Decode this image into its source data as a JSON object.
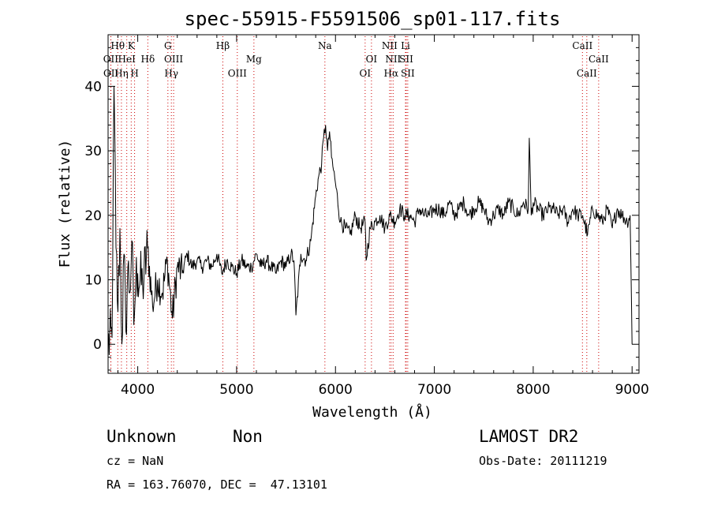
{
  "chart_data": {
    "type": "line",
    "title": "spec-55915-F5591506_sp01-117.fits",
    "xlabel": "Wavelength (Å)",
    "ylabel": "Flux (relative)",
    "xlim": [
      3700,
      9070
    ],
    "ylim": [
      -4.5,
      48
    ],
    "x_ticks": [
      4000,
      5000,
      6000,
      7000,
      8000,
      9000
    ],
    "y_ticks": [
      0,
      10,
      20,
      30,
      40
    ],
    "grid": false,
    "series": [
      {
        "color": "#000000",
        "x": [
          3700,
          3740,
          3760,
          3780,
          3800,
          3820,
          3840,
          3860,
          3880,
          3900,
          3920,
          3940,
          3960,
          3980,
          4000,
          4050,
          4100,
          4150,
          4200,
          4250,
          4300,
          4350,
          4400,
          4450,
          4500,
          4550,
          4600,
          4650,
          4700,
          4750,
          4800,
          4850,
          4900,
          4950,
          5000,
          5050,
          5100,
          5150,
          5200,
          5250,
          5300,
          5350,
          5400,
          5450,
          5500,
          5550,
          5580,
          5600,
          5650,
          5700,
          5750,
          5800,
          5830,
          5860,
          5880,
          5900,
          5920,
          5940,
          5960,
          5980,
          6000,
          6050,
          6100,
          6150,
          6200,
          6250,
          6300,
          6310,
          6350,
          6400,
          6450,
          6500,
          6550,
          6600,
          6650,
          6700,
          6750,
          6800,
          6850,
          6900,
          6950,
          7000,
          7050,
          7100,
          7150,
          7200,
          7250,
          7300,
          7350,
          7400,
          7450,
          7500,
          7550,
          7600,
          7650,
          7700,
          7750,
          7800,
          7850,
          7900,
          7950,
          7960,
          7980,
          8000,
          8050,
          8100,
          8150,
          8200,
          8250,
          8300,
          8350,
          8400,
          8450,
          8500,
          8550,
          8600,
          8650,
          8700,
          8750,
          8800,
          8850,
          8900,
          8950,
          8980,
          9000
        ],
        "y": [
          0,
          1,
          40,
          15,
          5,
          18,
          0,
          14,
          2,
          12,
          8,
          16,
          3,
          10,
          11,
          9,
          15,
          6,
          10,
          8,
          13,
          4,
          12,
          11,
          14,
          12,
          13,
          12,
          13,
          12,
          14,
          11,
          13,
          12,
          11,
          13,
          12,
          12,
          14,
          12,
          13,
          12,
          11,
          13,
          12,
          14,
          13,
          4.5,
          14,
          13,
          16,
          23,
          26,
          28,
          32,
          34,
          30,
          33,
          29,
          27,
          25,
          19,
          18,
          17,
          20,
          18,
          19,
          13,
          18,
          19,
          20,
          18,
          20,
          19,
          21,
          20,
          20,
          19,
          21,
          20,
          20,
          21,
          21,
          20,
          22,
          20,
          21,
          22,
          20,
          21,
          22,
          21,
          19,
          20,
          21,
          20,
          22,
          21,
          20,
          22,
          21,
          32,
          20,
          22,
          21,
          20,
          21,
          21,
          20,
          21,
          19,
          21,
          20,
          20,
          17,
          21,
          20,
          19,
          21,
          18,
          21,
          20,
          19,
          20,
          0
        ]
      }
    ],
    "emission_lines": [
      {
        "label": "Hθ",
        "x": 3798,
        "row": 1
      },
      {
        "label": "K",
        "x": 3934,
        "row": 1
      },
      {
        "label": "G",
        "x": 4305,
        "row": 1
      },
      {
        "label": "Hβ",
        "x": 4861,
        "row": 1
      },
      {
        "label": "Na",
        "x": 5893,
        "row": 1
      },
      {
        "label": "NII",
        "x": 6548,
        "row": 1
      },
      {
        "label": "Li",
        "x": 6708,
        "row": 1
      },
      {
        "label": "CaII",
        "x": 8498,
        "row": 1
      },
      {
        "label": "OII",
        "x": 3727,
        "row": 2
      },
      {
        "label": "HeI",
        "x": 3889,
        "row": 2
      },
      {
        "label": "Hδ",
        "x": 4102,
        "row": 2
      },
      {
        "label": "OIII",
        "x": 4363,
        "row": 2
      },
      {
        "label": "Mg",
        "x": 5175,
        "row": 2
      },
      {
        "label": "OI",
        "x": 6364,
        "row": 2
      },
      {
        "label": "NII",
        "x": 6583,
        "row": 2
      },
      {
        "label": "SII",
        "x": 6716,
        "row": 2
      },
      {
        "label": "CaII",
        "x": 8662,
        "row": 2
      },
      {
        "label": "OII",
        "x": 3729,
        "row": 3
      },
      {
        "label": "Hη",
        "x": 3835,
        "row": 3
      },
      {
        "label": "H",
        "x": 3968,
        "row": 3
      },
      {
        "label": "Hγ",
        "x": 4340,
        "row": 3
      },
      {
        "label": "OIII",
        "x": 5007,
        "row": 3
      },
      {
        "label": "OI",
        "x": 6300,
        "row": 3
      },
      {
        "label": "Hα",
        "x": 6563,
        "row": 3
      },
      {
        "label": "SII",
        "x": 6731,
        "row": 3
      },
      {
        "label": "CaII",
        "x": 8542,
        "row": 3
      }
    ],
    "line_color": "#cc0000"
  },
  "footer": {
    "object_class": "Unknown",
    "subclass": "Non",
    "survey": "LAMOST DR2",
    "cz": "cz = NaN",
    "obs_date": "Obs-Date: 20111219",
    "coords": "RA = 163.76070, DEC =  47.13101"
  }
}
